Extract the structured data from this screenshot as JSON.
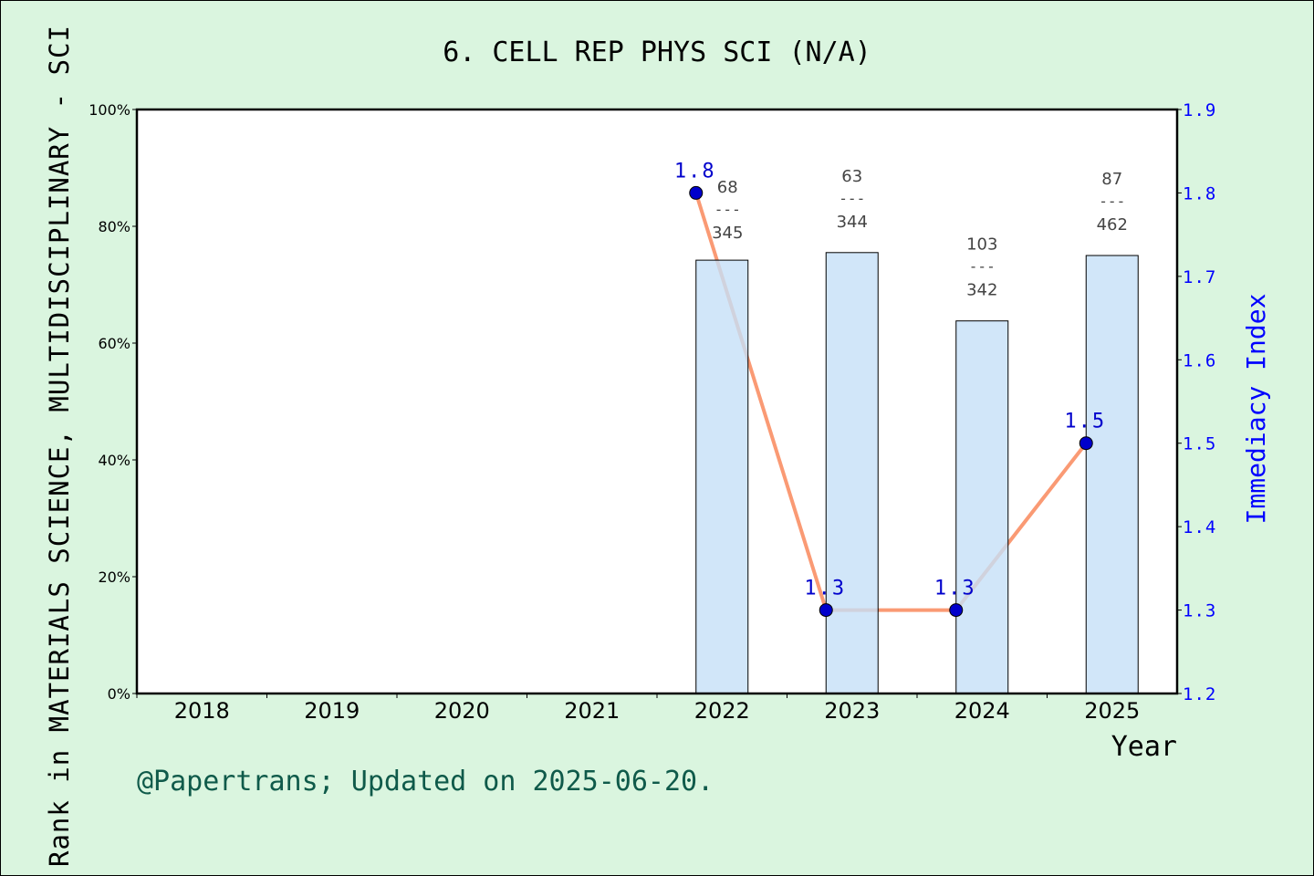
{
  "chart_data": {
    "type": "bar+line",
    "title": "6. CELL REP PHYS SCI (N/A)",
    "xlabel": "Year",
    "ylabel_left": "Rank in MATERIALS SCIENCE, MULTIDISCIPLINARY - SCI",
    "ylabel_right": "Immediacy Index",
    "categories": [
      "2018",
      "2019",
      "2020",
      "2021",
      "2022",
      "2023",
      "2024",
      "2025"
    ],
    "left_ylim": [
      0,
      100
    ],
    "left_ticks": [
      "0%",
      "20%",
      "40%",
      "60%",
      "80%",
      "100%"
    ],
    "right_ylim": [
      1.2,
      1.9
    ],
    "right_ticks": [
      "1.2",
      "1.3",
      "1.4",
      "1.5",
      "1.6",
      "1.7",
      "1.8",
      "1.9"
    ],
    "bars": {
      "values_percent": [
        null,
        null,
        null,
        null,
        74.2,
        75.5,
        63.8,
        75.0
      ],
      "rank_labels": [
        null,
        null,
        null,
        null,
        {
          "rank": "68",
          "total": "345"
        },
        {
          "rank": "63",
          "total": "344"
        },
        {
          "rank": "103",
          "total": "342"
        },
        {
          "rank": "87",
          "total": "462"
        }
      ]
    },
    "line": {
      "values": [
        null,
        null,
        null,
        null,
        1.8,
        1.3,
        1.3,
        1.5
      ],
      "labels": [
        null,
        null,
        null,
        null,
        "1.8",
        "1.3",
        "1.3",
        "1.5"
      ]
    },
    "colors": {
      "bar": "#c5e0f7",
      "line": "#fa9a74",
      "marker": "#0000cc",
      "right_axis": "#0000ff",
      "background": "#daf5df",
      "footer": "#0f5a4a"
    },
    "grid": false
  },
  "footer": "@Papertrans; Updated on 2025-06-20."
}
